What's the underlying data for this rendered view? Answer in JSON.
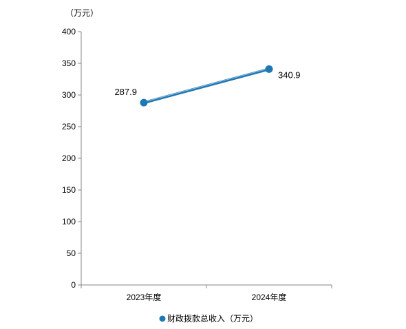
{
  "chart_data": {
    "type": "line",
    "title": "",
    "xlabel": "",
    "ylabel": "（万元）",
    "categories": [
      "2023年度",
      "2024年度"
    ],
    "series": [
      {
        "name": "财政拨款总收入（万元）",
        "values": [
          287.9,
          340.9
        ],
        "labels": [
          "287.9",
          "340.9"
        ],
        "color": "#1F77B4"
      }
    ],
    "ylim": [
      0,
      400
    ],
    "yticks": [
      0,
      50,
      100,
      150,
      200,
      250,
      300,
      350,
      400
    ],
    "grid": false,
    "legend": "bottom-center"
  }
}
